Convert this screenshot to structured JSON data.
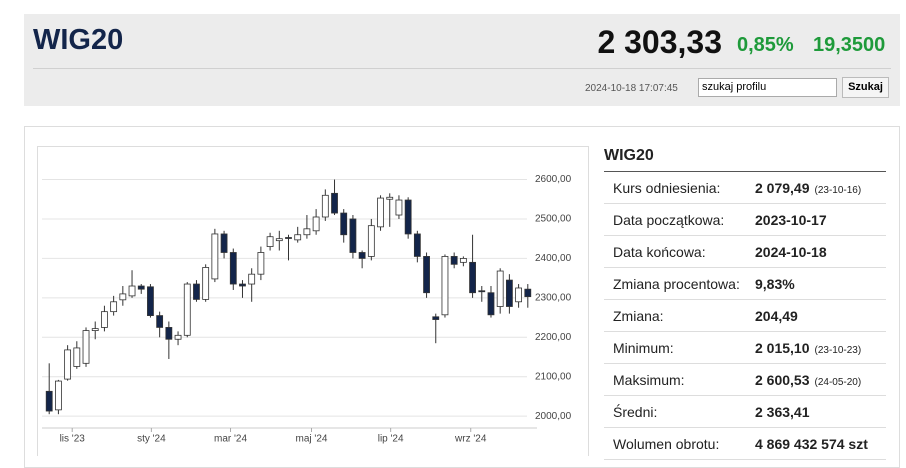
{
  "header": {
    "title": "WIG20",
    "price": "2 303,33",
    "change_pct": "0,85%",
    "change": "19,3500",
    "timestamp": "2024-10-18 17:07:45",
    "search_value": "szukaj profilu",
    "search_button": "Szukaj"
  },
  "chart_data": {
    "type": "candlestick",
    "open": [
      2063,
      2016,
      2094,
      2126,
      2134,
      2217,
      2225,
      2265,
      2295,
      2305,
      2330,
      2328,
      2255,
      2225,
      2195,
      2205,
      2335,
      2296,
      2348,
      2462,
      2415,
      2335,
      2335,
      2360,
      2430,
      2445,
      2453,
      2447,
      2460,
      2470,
      2505,
      2565,
      2515,
      2500,
      2415,
      2405,
      2480,
      2550,
      2510,
      2548,
      2462,
      2405,
      2252,
      2257,
      2405,
      2390,
      2390,
      2318,
      2313,
      2278,
      2345,
      2290,
      2322
    ],
    "high": [
      2134,
      2092,
      2180,
      2190,
      2225,
      2240,
      2280,
      2305,
      2330,
      2370,
      2335,
      2335,
      2265,
      2240,
      2215,
      2340,
      2345,
      2385,
      2475,
      2470,
      2425,
      2345,
      2375,
      2430,
      2465,
      2470,
      2460,
      2480,
      2510,
      2525,
      2575,
      2600,
      2525,
      2510,
      2420,
      2500,
      2560,
      2565,
      2560,
      2555,
      2470,
      2415,
      2260,
      2410,
      2415,
      2405,
      2460,
      2330,
      2330,
      2375,
      2360,
      2335,
      2335
    ],
    "low": [
      2005,
      2005,
      2090,
      2120,
      2125,
      2195,
      2215,
      2255,
      2280,
      2300,
      2310,
      2250,
      2200,
      2145,
      2180,
      2200,
      2290,
      2290,
      2340,
      2400,
      2320,
      2300,
      2290,
      2345,
      2420,
      2420,
      2395,
      2440,
      2450,
      2460,
      2495,
      2510,
      2440,
      2400,
      2375,
      2395,
      2470,
      2480,
      2500,
      2450,
      2390,
      2300,
      2185,
      2250,
      2375,
      2380,
      2300,
      2290,
      2250,
      2260,
      2260,
      2275,
      2275
    ],
    "close": [
      2013,
      2089,
      2168,
      2173,
      2217,
      2222,
      2265,
      2290,
      2310,
      2330,
      2322,
      2255,
      2225,
      2195,
      2205,
      2335,
      2296,
      2377,
      2462,
      2415,
      2335,
      2330,
      2360,
      2415,
      2455,
      2450,
      2452,
      2460,
      2475,
      2505,
      2560,
      2515,
      2460,
      2415,
      2400,
      2483,
      2553,
      2555,
      2548,
      2462,
      2405,
      2313,
      2245,
      2405,
      2385,
      2400,
      2313,
      2316,
      2257,
      2368,
      2278,
      2325,
      2303
    ],
    "xticks": [
      {
        "value": 2.5,
        "label": "lis '23"
      },
      {
        "value": 11.1,
        "label": "sty '24"
      },
      {
        "value": 19.7,
        "label": "mar '24"
      },
      {
        "value": 28.5,
        "label": "maj '24"
      },
      {
        "value": 37.1,
        "label": "lip '24"
      },
      {
        "value": 45.8,
        "label": "wrz '24"
      }
    ],
    "xlim": [
      -1,
      53
    ],
    "ylim": [
      1970,
      2685
    ],
    "yticks": [
      {
        "value": 2000,
        "label": "2000,00"
      },
      {
        "value": 2100,
        "label": "2100,00"
      },
      {
        "value": 2200,
        "label": "2200,00"
      },
      {
        "value": 2300,
        "label": "2300,00"
      },
      {
        "value": 2400,
        "label": "2400,00"
      },
      {
        "value": 2500,
        "label": "2500,00"
      },
      {
        "value": 2600,
        "label": "2600,00"
      }
    ],
    "grid": true,
    "up_color": "#ffffff",
    "down_color": "#13254a"
  },
  "table": {
    "title": "WIG20",
    "rows": [
      {
        "label": "Kurs odniesienia:",
        "value": "2 079,49",
        "note": "(23-10-16)"
      },
      {
        "label": "Data początkowa:",
        "value": "2023-10-17"
      },
      {
        "label": "Data końcowa:",
        "value": "2024-10-18"
      },
      {
        "label": "Zmiana procentowa:",
        "value": "9,83%"
      },
      {
        "label": "Zmiana:",
        "value": "204,49"
      },
      {
        "label": "Minimum:",
        "value": "2 015,10",
        "note": "(23-10-23)"
      },
      {
        "label": "Maksimum:",
        "value": "2 600,53",
        "note": "(24-05-20)"
      },
      {
        "label": "Średni:",
        "value": "2 363,41"
      },
      {
        "label": "Wolumen obrotu:",
        "value": "4 869 432 574 szt"
      }
    ]
  }
}
